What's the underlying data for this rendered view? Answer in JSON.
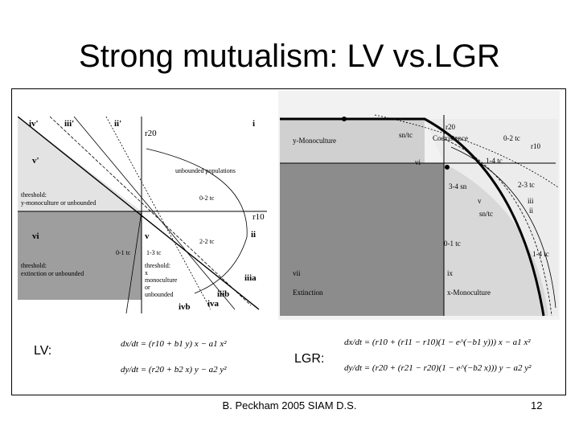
{
  "slide": {
    "title": "Strong mutualism:  LV vs.LGR",
    "footer": "B. Peckham 2005 SIAM D.S.",
    "page_number": "12"
  },
  "lv_panel": {
    "region_labels": [
      "iv'",
      "iii'",
      "ii'",
      "i",
      "v'",
      "vi",
      "v",
      "ii",
      "iiia",
      "iiib",
      "ivb",
      "iva"
    ],
    "axis_label_r20": "r20",
    "axis_label_r10": "r10",
    "annotations": {
      "unbounded": "unbounded populations",
      "threshold_y": "threshold:",
      "threshold_y2": "y-monoculture or unbounded",
      "threshold_x": "threshold:",
      "threshold_x2": "extinction or unbounded",
      "threshold_right1": "threshold:",
      "threshold_right2": "x",
      "threshold_right3": "monoculture",
      "threshold_right4": "or",
      "threshold_right5": "unbounded",
      "tc_02": "0-2 tc",
      "tc_22": "2-2 tc",
      "tc_01": "0-1 tc",
      "tc_13": "1-3 tc"
    },
    "eq_label": "LV:",
    "equations": [
      "dx/dt = (r10 + b1 y) x − a1 x²",
      "dy/dt = (r20 + b2 x) y − a2 y²"
    ]
  },
  "lgr_panel": {
    "region_labels": [
      "y-Monoculture",
      "Coexistence",
      "vi",
      "vii",
      "ix",
      "v",
      "iii",
      "ii"
    ],
    "annotations": {
      "r20": "r20",
      "r10": "r10",
      "sn_tc": "sn/tc",
      "tc_02": "0-2 tc",
      "tc_14": "1-4 tc",
      "sn_34": "3-4 sn",
      "tc_23": "2-3 tc",
      "sn_tc2": "sn/tc",
      "tc_01": "0-1 tc",
      "tc_14b": "1-4 tc",
      "extinction": "Extinction",
      "x_mono": "x-Monoculture"
    },
    "eq_label": "LGR:",
    "equations": [
      "dx/dt = (r10 + (r11 − r10)(1 − e^(−b1 y))) x − a1 x²",
      "dy/dt = (r20 + (r21 − r20)(1 − e^(−b2 x))) y − a2 y²"
    ]
  }
}
